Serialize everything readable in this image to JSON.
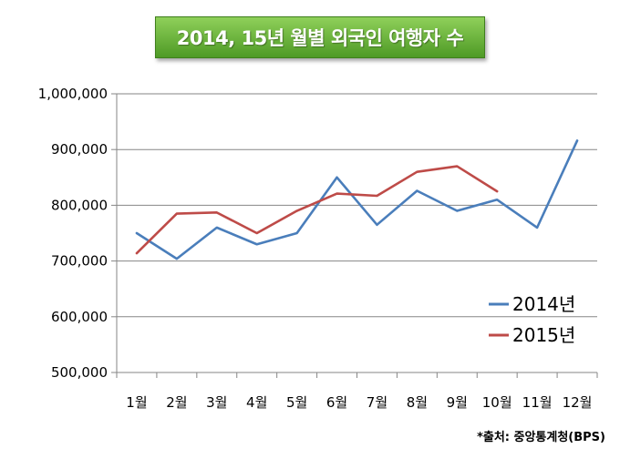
{
  "chart_data": {
    "type": "line",
    "title": "2014, 15년 월별 외국인 여행자 수",
    "categories": [
      "1월",
      "2월",
      "3월",
      "4월",
      "5월",
      "6월",
      "7월",
      "8월",
      "9월",
      "10월",
      "11월",
      "12월"
    ],
    "series": [
      {
        "name": "2014년",
        "color": "#4a7ebb",
        "values": [
          750000,
          704000,
          760000,
          730000,
          750000,
          850000,
          765000,
          826000,
          790000,
          810000,
          760000,
          916000
        ]
      },
      {
        "name": "2015년",
        "color": "#be4b48",
        "values": [
          714000,
          785000,
          787000,
          750000,
          790000,
          821000,
          817000,
          860000,
          870000,
          825000,
          null,
          null
        ]
      }
    ],
    "ylim": [
      500000,
      1000000
    ],
    "y_ticks": [
      "500,000",
      "600,000",
      "700,000",
      "800,000",
      "900,000",
      "1,000,000"
    ],
    "y_tick_values": [
      500000,
      600000,
      700000,
      800000,
      900000,
      1000000
    ],
    "grid": true,
    "legend_position": "bottom-right",
    "source": "*출처: 중앙통계청(BPS)"
  }
}
